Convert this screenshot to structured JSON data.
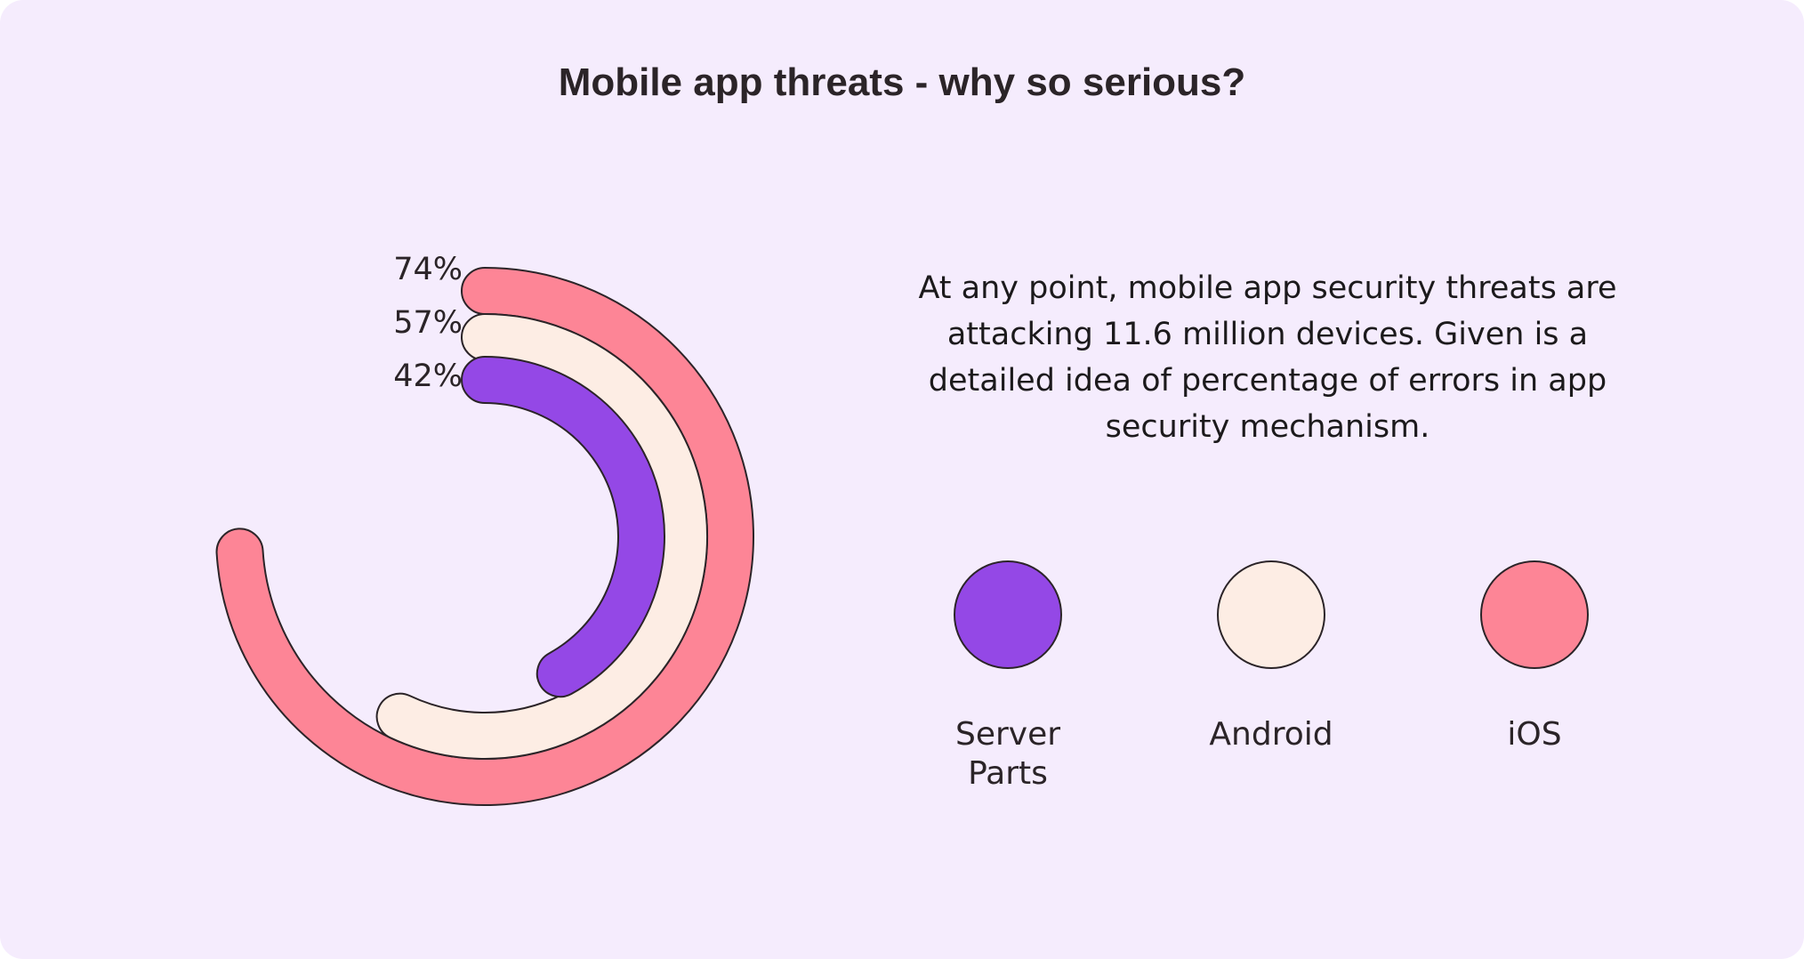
{
  "title": "Mobile app threats - why so serious?",
  "description": "At any point, mobile app security threats are attacking 11.6 million devices. Given is a detailed idea of percentage of errors in app security mechanism.",
  "chart_data": {
    "type": "radial-bar",
    "series": [
      {
        "name": "iOS",
        "value": 74,
        "label": "74%",
        "color": "#fd8596"
      },
      {
        "name": "Android",
        "value": 57,
        "label": "57%",
        "color": "#fdede4"
      },
      {
        "name": "Server Parts",
        "value": 42,
        "label": "42%",
        "color": "#9448e6"
      }
    ],
    "legend": {
      "placement": "right",
      "items": [
        {
          "label": "Server\nParts",
          "color": "#9448e6"
        },
        {
          "label": "Android",
          "color": "#fdede4"
        },
        {
          "label": "iOS",
          "color": "#fd8596"
        }
      ]
    }
  },
  "colors": {
    "background": "#f5ecfd",
    "stroke": "#2b2428",
    "text": "#2b2428"
  }
}
